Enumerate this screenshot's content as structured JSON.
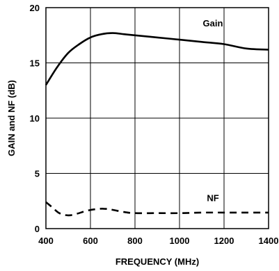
{
  "chart_data": {
    "type": "line",
    "title": "",
    "xlabel": "FREQUENCY (MHz)",
    "ylabel": "GAIN and NF (dB)",
    "xlim": [
      400,
      1400
    ],
    "ylim": [
      0,
      20
    ],
    "xticks": [
      "400",
      "600",
      "800",
      "1000",
      "1200",
      "1400"
    ],
    "yticks": [
      "0",
      "5",
      "10",
      "15",
      "20"
    ],
    "grid": true,
    "line_color": "#000000",
    "series": [
      {
        "name": "Gain",
        "style": "solid",
        "x": [
          400,
          450,
          500,
          550,
          600,
          650,
          700,
          750,
          800,
          900,
          1000,
          1100,
          1200,
          1300,
          1400
        ],
        "y": [
          13.0,
          14.6,
          15.9,
          16.7,
          17.3,
          17.6,
          17.7,
          17.6,
          17.5,
          17.3,
          17.1,
          16.9,
          16.7,
          16.3,
          16.2
        ]
      },
      {
        "name": "NF",
        "style": "dashed",
        "x": [
          400,
          430,
          460,
          500,
          540,
          580,
          620,
          660,
          700,
          750,
          800,
          900,
          1000,
          1100,
          1200,
          1300,
          1400
        ],
        "y": [
          2.4,
          1.9,
          1.4,
          1.2,
          1.35,
          1.6,
          1.75,
          1.8,
          1.7,
          1.5,
          1.4,
          1.4,
          1.4,
          1.45,
          1.45,
          1.45,
          1.45
        ]
      }
    ]
  }
}
